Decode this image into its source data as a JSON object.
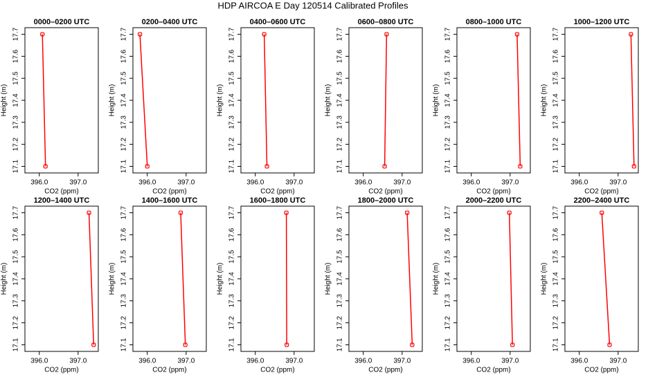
{
  "title": "HDP AIRCOA E  Day 120514  Calibrated Profiles",
  "chart_data": [
    {
      "type": "line",
      "title": "0000–0200 UTC",
      "xlabel": "CO2 (ppm)",
      "ylabel": "Height (m)",
      "x": [
        396.08,
        396.16
      ],
      "values": [
        17.7,
        17.1
      ],
      "color": "#ff0000",
      "xlim": [
        395.63,
        397.52
      ],
      "ylim": [
        17.07,
        17.73
      ],
      "xticks": [
        {
          "value": 396,
          "label": "396.0"
        },
        {
          "value": 397,
          "label": "397.0"
        }
      ],
      "yticks": [
        17.1,
        17.2,
        17.3,
        17.4,
        17.5,
        17.6,
        17.7
      ]
    },
    {
      "type": "line",
      "title": "0200–0400 UTC",
      "xlabel": "CO2 (ppm)",
      "ylabel": "Height (m)",
      "x": [
        395.81,
        396.0
      ],
      "values": [
        17.7,
        17.1
      ],
      "color": "#ff0000",
      "xlim": [
        395.63,
        397.52
      ],
      "ylim": [
        17.07,
        17.73
      ],
      "xticks": [
        {
          "value": 396,
          "label": "396.0"
        },
        {
          "value": 397,
          "label": "397.0"
        }
      ],
      "yticks": [
        17.1,
        17.2,
        17.3,
        17.4,
        17.5,
        17.6,
        17.7
      ]
    },
    {
      "type": "line",
      "title": "0400–0600 UTC",
      "xlabel": "CO2 (ppm)",
      "ylabel": "Height (m)",
      "x": [
        396.23,
        396.3
      ],
      "values": [
        17.7,
        17.1
      ],
      "color": "#ff0000",
      "xlim": [
        395.63,
        397.52
      ],
      "ylim": [
        17.07,
        17.73
      ],
      "xticks": [
        {
          "value": 396,
          "label": "396.0"
        },
        {
          "value": 397,
          "label": "397.0"
        }
      ],
      "yticks": [
        17.1,
        17.2,
        17.3,
        17.4,
        17.5,
        17.6,
        17.7
      ]
    },
    {
      "type": "line",
      "title": "0600–0800 UTC",
      "xlabel": "CO2 (ppm)",
      "ylabel": "Height (m)",
      "x": [
        396.6,
        396.55
      ],
      "values": [
        17.7,
        17.1
      ],
      "color": "#ff0000",
      "xlim": [
        395.63,
        397.52
      ],
      "ylim": [
        17.07,
        17.73
      ],
      "xticks": [
        {
          "value": 396,
          "label": "396.0"
        },
        {
          "value": 397,
          "label": "397.0"
        }
      ],
      "yticks": [
        17.1,
        17.2,
        17.3,
        17.4,
        17.5,
        17.6,
        17.7
      ]
    },
    {
      "type": "line",
      "title": "0800–1000 UTC",
      "xlabel": "CO2 (ppm)",
      "ylabel": "Height (m)",
      "x": [
        397.18,
        397.26
      ],
      "values": [
        17.7,
        17.1
      ],
      "color": "#ff0000",
      "xlim": [
        395.63,
        397.52
      ],
      "ylim": [
        17.07,
        17.73
      ],
      "xticks": [
        {
          "value": 396,
          "label": "396.0"
        },
        {
          "value": 397,
          "label": "397.0"
        }
      ],
      "yticks": [
        17.1,
        17.2,
        17.3,
        17.4,
        17.5,
        17.6,
        17.7
      ]
    },
    {
      "type": "line",
      "title": "1000–1200 UTC",
      "xlabel": "CO2 (ppm)",
      "ylabel": "Height (m)",
      "x": [
        397.33,
        397.41
      ],
      "values": [
        17.7,
        17.1
      ],
      "color": "#ff0000",
      "xlim": [
        395.63,
        397.52
      ],
      "ylim": [
        17.07,
        17.73
      ],
      "xticks": [
        {
          "value": 396,
          "label": "396.0"
        },
        {
          "value": 397,
          "label": "397.0"
        }
      ],
      "yticks": [
        17.1,
        17.2,
        17.3,
        17.4,
        17.5,
        17.6,
        17.7
      ]
    },
    {
      "type": "line",
      "title": "1200–1400 UTC",
      "xlabel": "CO2 (ppm)",
      "ylabel": "Height (m)",
      "x": [
        397.28,
        397.4
      ],
      "values": [
        17.7,
        17.1
      ],
      "color": "#ff0000",
      "xlim": [
        395.63,
        397.52
      ],
      "ylim": [
        17.07,
        17.73
      ],
      "xticks": [
        {
          "value": 396,
          "label": "396.0"
        },
        {
          "value": 397,
          "label": "397.0"
        }
      ],
      "yticks": [
        17.1,
        17.2,
        17.3,
        17.4,
        17.5,
        17.6,
        17.7
      ]
    },
    {
      "type": "line",
      "title": "1400–1600 UTC",
      "xlabel": "CO2 (ppm)",
      "ylabel": "Height (m)",
      "x": [
        396.86,
        396.98
      ],
      "values": [
        17.7,
        17.1
      ],
      "color": "#ff0000",
      "xlim": [
        395.63,
        397.52
      ],
      "ylim": [
        17.07,
        17.73
      ],
      "xticks": [
        {
          "value": 396,
          "label": "396.0"
        },
        {
          "value": 397,
          "label": "397.0"
        }
      ],
      "yticks": [
        17.1,
        17.2,
        17.3,
        17.4,
        17.5,
        17.6,
        17.7
      ]
    },
    {
      "type": "line",
      "title": "1600–1800 UTC",
      "xlabel": "CO2 (ppm)",
      "ylabel": "Height (m)",
      "x": [
        396.8,
        396.81
      ],
      "values": [
        17.7,
        17.1
      ],
      "color": "#ff0000",
      "xlim": [
        395.63,
        397.52
      ],
      "ylim": [
        17.07,
        17.73
      ],
      "xticks": [
        {
          "value": 396,
          "label": "396.0"
        },
        {
          "value": 397,
          "label": "397.0"
        }
      ],
      "yticks": [
        17.1,
        17.2,
        17.3,
        17.4,
        17.5,
        17.6,
        17.7
      ]
    },
    {
      "type": "line",
      "title": "1800–2000 UTC",
      "xlabel": "CO2 (ppm)",
      "ylabel": "Height (m)",
      "x": [
        397.13,
        397.26
      ],
      "values": [
        17.7,
        17.1
      ],
      "color": "#ff0000",
      "xlim": [
        395.63,
        397.52
      ],
      "ylim": [
        17.07,
        17.73
      ],
      "xticks": [
        {
          "value": 396,
          "label": "396.0"
        },
        {
          "value": 397,
          "label": "397.0"
        }
      ],
      "yticks": [
        17.1,
        17.2,
        17.3,
        17.4,
        17.5,
        17.6,
        17.7
      ]
    },
    {
      "type": "line",
      "title": "2000–2200 UTC",
      "xlabel": "CO2 (ppm)",
      "ylabel": "Height (m)",
      "x": [
        396.98,
        397.06
      ],
      "values": [
        17.7,
        17.1
      ],
      "color": "#ff0000",
      "xlim": [
        395.63,
        397.52
      ],
      "ylim": [
        17.07,
        17.73
      ],
      "xticks": [
        {
          "value": 396,
          "label": "396.0"
        },
        {
          "value": 397,
          "label": "397.0"
        }
      ],
      "yticks": [
        17.1,
        17.2,
        17.3,
        17.4,
        17.5,
        17.6,
        17.7
      ]
    },
    {
      "type": "line",
      "title": "2200–2400 UTC",
      "xlabel": "CO2 (ppm)",
      "ylabel": "Height (m)",
      "x": [
        396.58,
        396.78
      ],
      "values": [
        17.7,
        17.1
      ],
      "color": "#ff0000",
      "xlim": [
        395.63,
        397.52
      ],
      "ylim": [
        17.07,
        17.73
      ],
      "xticks": [
        {
          "value": 396,
          "label": "396.0"
        },
        {
          "value": 397,
          "label": "397.0"
        }
      ],
      "yticks": [
        17.1,
        17.2,
        17.3,
        17.4,
        17.5,
        17.6,
        17.7
      ]
    }
  ]
}
